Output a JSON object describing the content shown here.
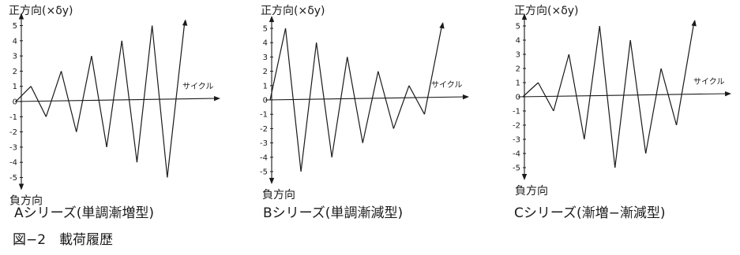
{
  "chart_data": [
    {
      "type": "line",
      "title": "Aシリーズ(単調漸増型)",
      "positive_axis_label": "正方向(×δy)",
      "negative_axis_label": "負方向",
      "xlabel": "サイクル",
      "ylim": [
        -5,
        5
      ],
      "y_ticks": [
        "5",
        "4",
        "3",
        "2",
        "1",
        "0",
        "-1",
        "-2",
        "-3",
        "-4",
        "-5"
      ],
      "series": [
        {
          "x": [
            0,
            1,
            2,
            3,
            4,
            5,
            6,
            7,
            8,
            9,
            10,
            11
          ],
          "y": [
            0,
            1,
            -1,
            2,
            -2,
            3,
            -3,
            4,
            -4,
            5,
            -5,
            5
          ]
        }
      ]
    },
    {
      "type": "line",
      "title": "Bシリーズ(単調漸減型)",
      "positive_axis_label": "正方向(×δy)",
      "negative_axis_label": "負方向",
      "xlabel": "サイクル",
      "ylim": [
        -5,
        5
      ],
      "y_ticks": [
        "5",
        "4",
        "3",
        "2",
        "1",
        "0",
        "-1",
        "-2",
        "-3",
        "-4",
        "-5"
      ],
      "series": [
        {
          "x": [
            0,
            1,
            2,
            3,
            4,
            5,
            6,
            7,
            8,
            9,
            10,
            11
          ],
          "y": [
            0,
            5,
            -5,
            4,
            -4,
            3,
            -3,
            2,
            -2,
            1,
            -1,
            5
          ]
        }
      ]
    },
    {
      "type": "line",
      "title": "Cシリーズ(漸増−漸減型)",
      "positive_axis_label": "正方向(×δy)",
      "negative_axis_label": "負方向",
      "xlabel": "サイクル",
      "ylim": [
        -5,
        5
      ],
      "y_ticks": [
        "5",
        "4",
        "3",
        "2",
        "1",
        "0",
        "-1",
        "-2",
        "-3",
        "-4",
        "-5"
      ],
      "series": [
        {
          "x": [
            0,
            1,
            2,
            3,
            4,
            5,
            6,
            7,
            8,
            9,
            10,
            11
          ],
          "y": [
            0,
            1,
            -1,
            3,
            -3,
            5,
            -5,
            4,
            -4,
            2,
            -2,
            5
          ]
        }
      ]
    }
  ],
  "figure_caption": "図−2　載荷履歴"
}
